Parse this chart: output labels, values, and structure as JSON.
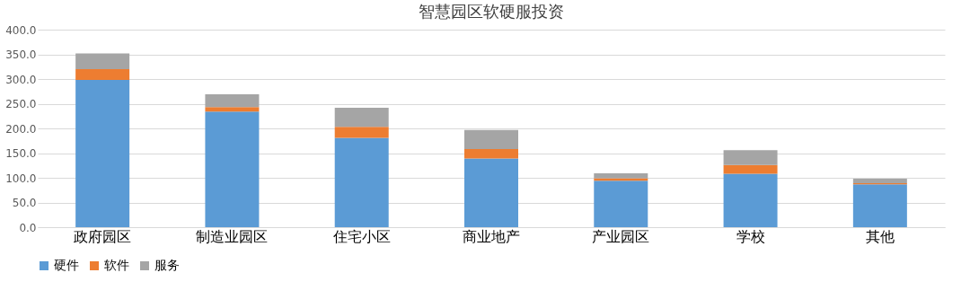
{
  "chart_data": {
    "type": "bar",
    "title": "智慧园区软硬服投资",
    "stacked": true,
    "legend": "bottom",
    "grid": "y",
    "categories": [
      "政府园区",
      "制造业园区",
      "住宅小区",
      "商业地产",
      "产业园区",
      "学校",
      "其他"
    ],
    "series": [
      {
        "name": "硬件",
        "color": "#5b9bd5",
        "values": [
          298,
          234,
          181,
          139,
          94,
          108,
          87
        ]
      },
      {
        "name": "软件",
        "color": "#ed7d31",
        "values": [
          22,
          9,
          22,
          19,
          5,
          18,
          2
        ]
      },
      {
        "name": "服务",
        "color": "#a5a5a5",
        "values": [
          32,
          26,
          39,
          39,
          10,
          30,
          9
        ]
      }
    ],
    "ylim": [
      0,
      400
    ],
    "yticks": [
      {
        "value": 0,
        "label": "0.0"
      },
      {
        "value": 50,
        "label": "50.0"
      },
      {
        "value": 100,
        "label": "100.0"
      },
      {
        "value": 150,
        "label": "150.0"
      },
      {
        "value": 200,
        "label": "200.0"
      },
      {
        "value": 250,
        "label": "250.0"
      },
      {
        "value": 300,
        "label": "300.0"
      },
      {
        "value": 350,
        "label": "350.0"
      },
      {
        "value": 400,
        "label": "400.0"
      }
    ]
  }
}
